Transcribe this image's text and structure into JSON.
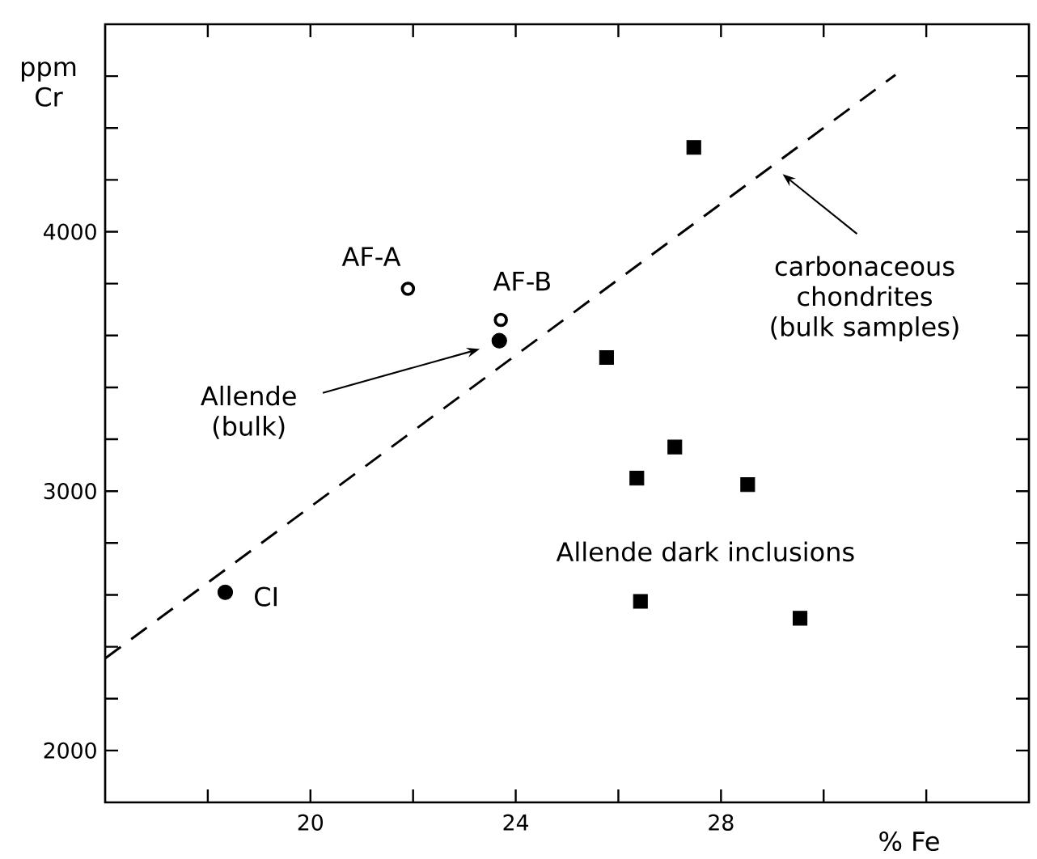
{
  "chart_data": {
    "type": "scatter",
    "xlabel": "% Fe",
    "ylabel": "ppm Cr",
    "xlim": [
      16,
      34
    ],
    "ylim": [
      1800,
      4800
    ],
    "xticks": [
      {
        "value": 18,
        "label": null
      },
      20,
      {
        "value": 22,
        "label": null
      },
      24,
      {
        "value": 26,
        "label": null
      },
      28,
      {
        "value": 30,
        "label": null
      },
      {
        "value": 32,
        "label": null
      }
    ],
    "yticks": [
      2000,
      {
        "value": 2200,
        "label": null
      },
      {
        "value": 2400,
        "label": null
      },
      {
        "value": 2600,
        "label": null
      },
      {
        "value": 2800,
        "label": null
      },
      3000,
      {
        "value": 3200,
        "label": null
      },
      {
        "value": 3400,
        "label": null
      },
      {
        "value": 3600,
        "label": null
      },
      {
        "value": 3800,
        "label": null
      },
      4000,
      {
        "value": 4200,
        "label": null
      },
      {
        "value": 4400,
        "label": null
      },
      {
        "value": 4600,
        "label": null
      }
    ],
    "grid": false,
    "series": [
      {
        "type": "line",
        "x": [
          16,
          31.4
        ],
        "values": [
          2355,
          4605
        ],
        "color": "#000000",
        "line_style": "dashed",
        "marker": "none"
      },
      {
        "x": [
          18.34,
          23.68
        ],
        "values": [
          2610,
          3580
        ],
        "color": "#000000",
        "marker": "circle"
      },
      {
        "x": [
          21.9,
          23.71
        ],
        "values": [
          3780,
          3660
        ],
        "color": "#000000",
        "marker": "circle"
      },
      {
        "x": [
          27.47,
          25.77,
          27.1,
          26.36,
          28.52,
          26.43,
          29.54
        ],
        "values": [
          4325,
          3515,
          3170,
          3050,
          3025,
          2575,
          2510
        ],
        "color": "#000000",
        "marker": "square"
      }
    ],
    "annotations": [
      {
        "text": "AF-A",
        "x": 21.9,
        "y": 3780
      },
      {
        "text": "AF-B",
        "x": 23.71,
        "y": 3660
      },
      {
        "text": "CI",
        "x": 18.34,
        "y": 2610
      },
      "Allende (bulk)",
      "carbonaceous chondrites (bulk samples)",
      "Allende dark inclusions"
    ]
  }
}
